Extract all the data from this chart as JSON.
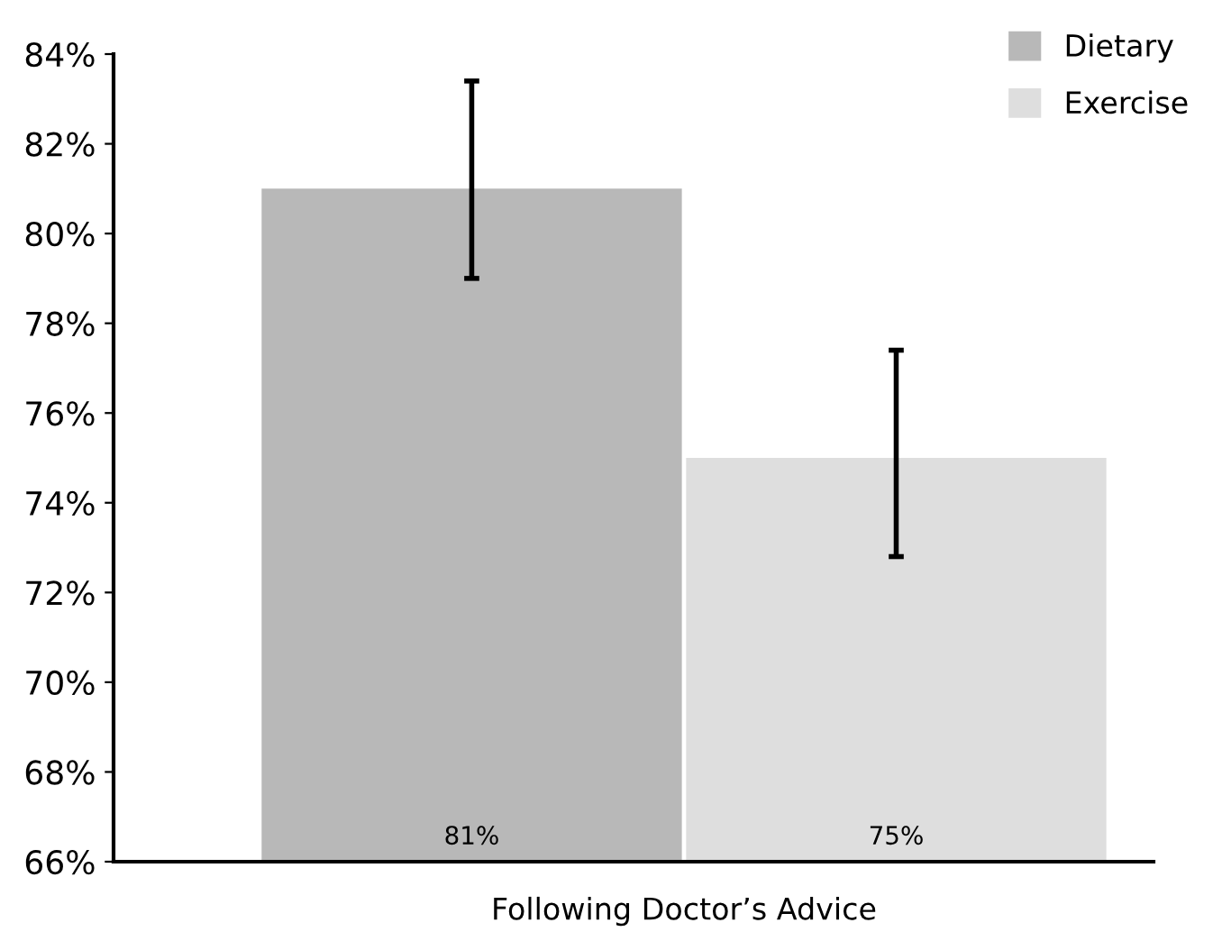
{
  "chart_data": {
    "type": "bar",
    "categories": [
      "Following Doctor’s Advice"
    ],
    "series": [
      {
        "name": "Dietary",
        "color": "#b8b8b8",
        "values": [
          81
        ],
        "errors": [
          [
            79.0,
            83.4
          ]
        ],
        "value_labels": [
          "81%"
        ]
      },
      {
        "name": "Exercise",
        "color": "#dedede",
        "values": [
          75
        ],
        "errors": [
          [
            72.8,
            77.4
          ]
        ],
        "value_labels": [
          "75%"
        ]
      }
    ],
    "ylim": [
      66,
      84
    ],
    "yticks": [
      {
        "value": 66,
        "label": "66%"
      },
      {
        "value": 68,
        "label": "68%"
      },
      {
        "value": 70,
        "label": "70%"
      },
      {
        "value": 72,
        "label": "72%"
      },
      {
        "value": 74,
        "label": "74%"
      },
      {
        "value": 76,
        "label": "76%"
      },
      {
        "value": 78,
        "label": "78%"
      },
      {
        "value": 80,
        "label": "80%"
      },
      {
        "value": 82,
        "label": "82%"
      },
      {
        "value": 84,
        "label": "84%"
      }
    ],
    "grid": false,
    "legend": "top right"
  }
}
